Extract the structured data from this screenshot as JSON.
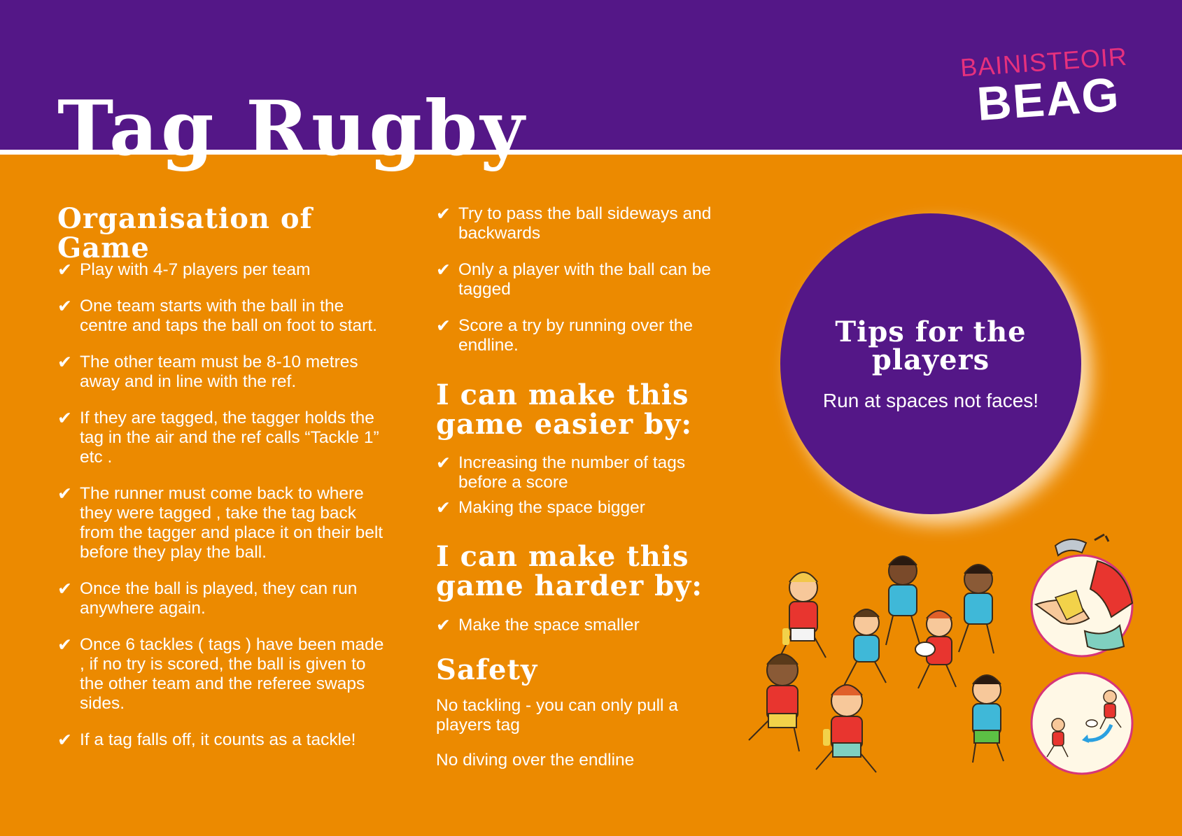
{
  "header": {
    "title": "Tag Rugby",
    "logo_top": "BAINISTEOIR",
    "logo_bottom": "BEAG"
  },
  "organisation": {
    "title": "Organisation of Game",
    "items": [
      "Play with 4-7 players per team",
      "One team starts with the ball in the centre and taps the ball on foot to start.",
      "The other team must be 8-10 metres away and in line with the ref.",
      "If they are tagged, the tagger holds the tag in the air and the ref calls “Tackle 1” etc .",
      "The runner must come back to where they were tagged , take the tag back from the tagger and place it on their belt before they play the ball.",
      "Once the ball is played, they can run anywhere again.",
      "Once 6 tackles ( tags ) have been made , if no try is scored, the ball is given to the other team and the referee swaps sides.",
      "If a tag falls off, it counts as a tackle!"
    ]
  },
  "rules_continued": {
    "items": [
      "Try to pass the ball sideways and backwards",
      "Only a player with the ball can be tagged",
      "Score a try by running over the endline."
    ]
  },
  "easier": {
    "title": "I can make this game easier by:",
    "items": [
      "Increasing the number of tags before a score",
      "Making the space bigger"
    ]
  },
  "harder": {
    "title": "I can make this game harder by:",
    "items": [
      "Make the space smaller"
    ]
  },
  "safety": {
    "title": "Safety",
    "lines": [
      "No tackling - you can only pull a players tag",
      "No diving over the endline"
    ]
  },
  "tips": {
    "title": "Tips for the players",
    "subtitle": "Run at spaces not faces!"
  },
  "check_symbol": "✔",
  "colors": {
    "background_orange": "#ec8a00",
    "header_purple": "#541787",
    "logo_pink": "#e6317d",
    "text": "#ffffff"
  },
  "illustrations": {
    "players": "running-children-illustration",
    "whistle_badge": "whistle-and-tag-icon",
    "pass_badge": "passing-players-icon"
  }
}
